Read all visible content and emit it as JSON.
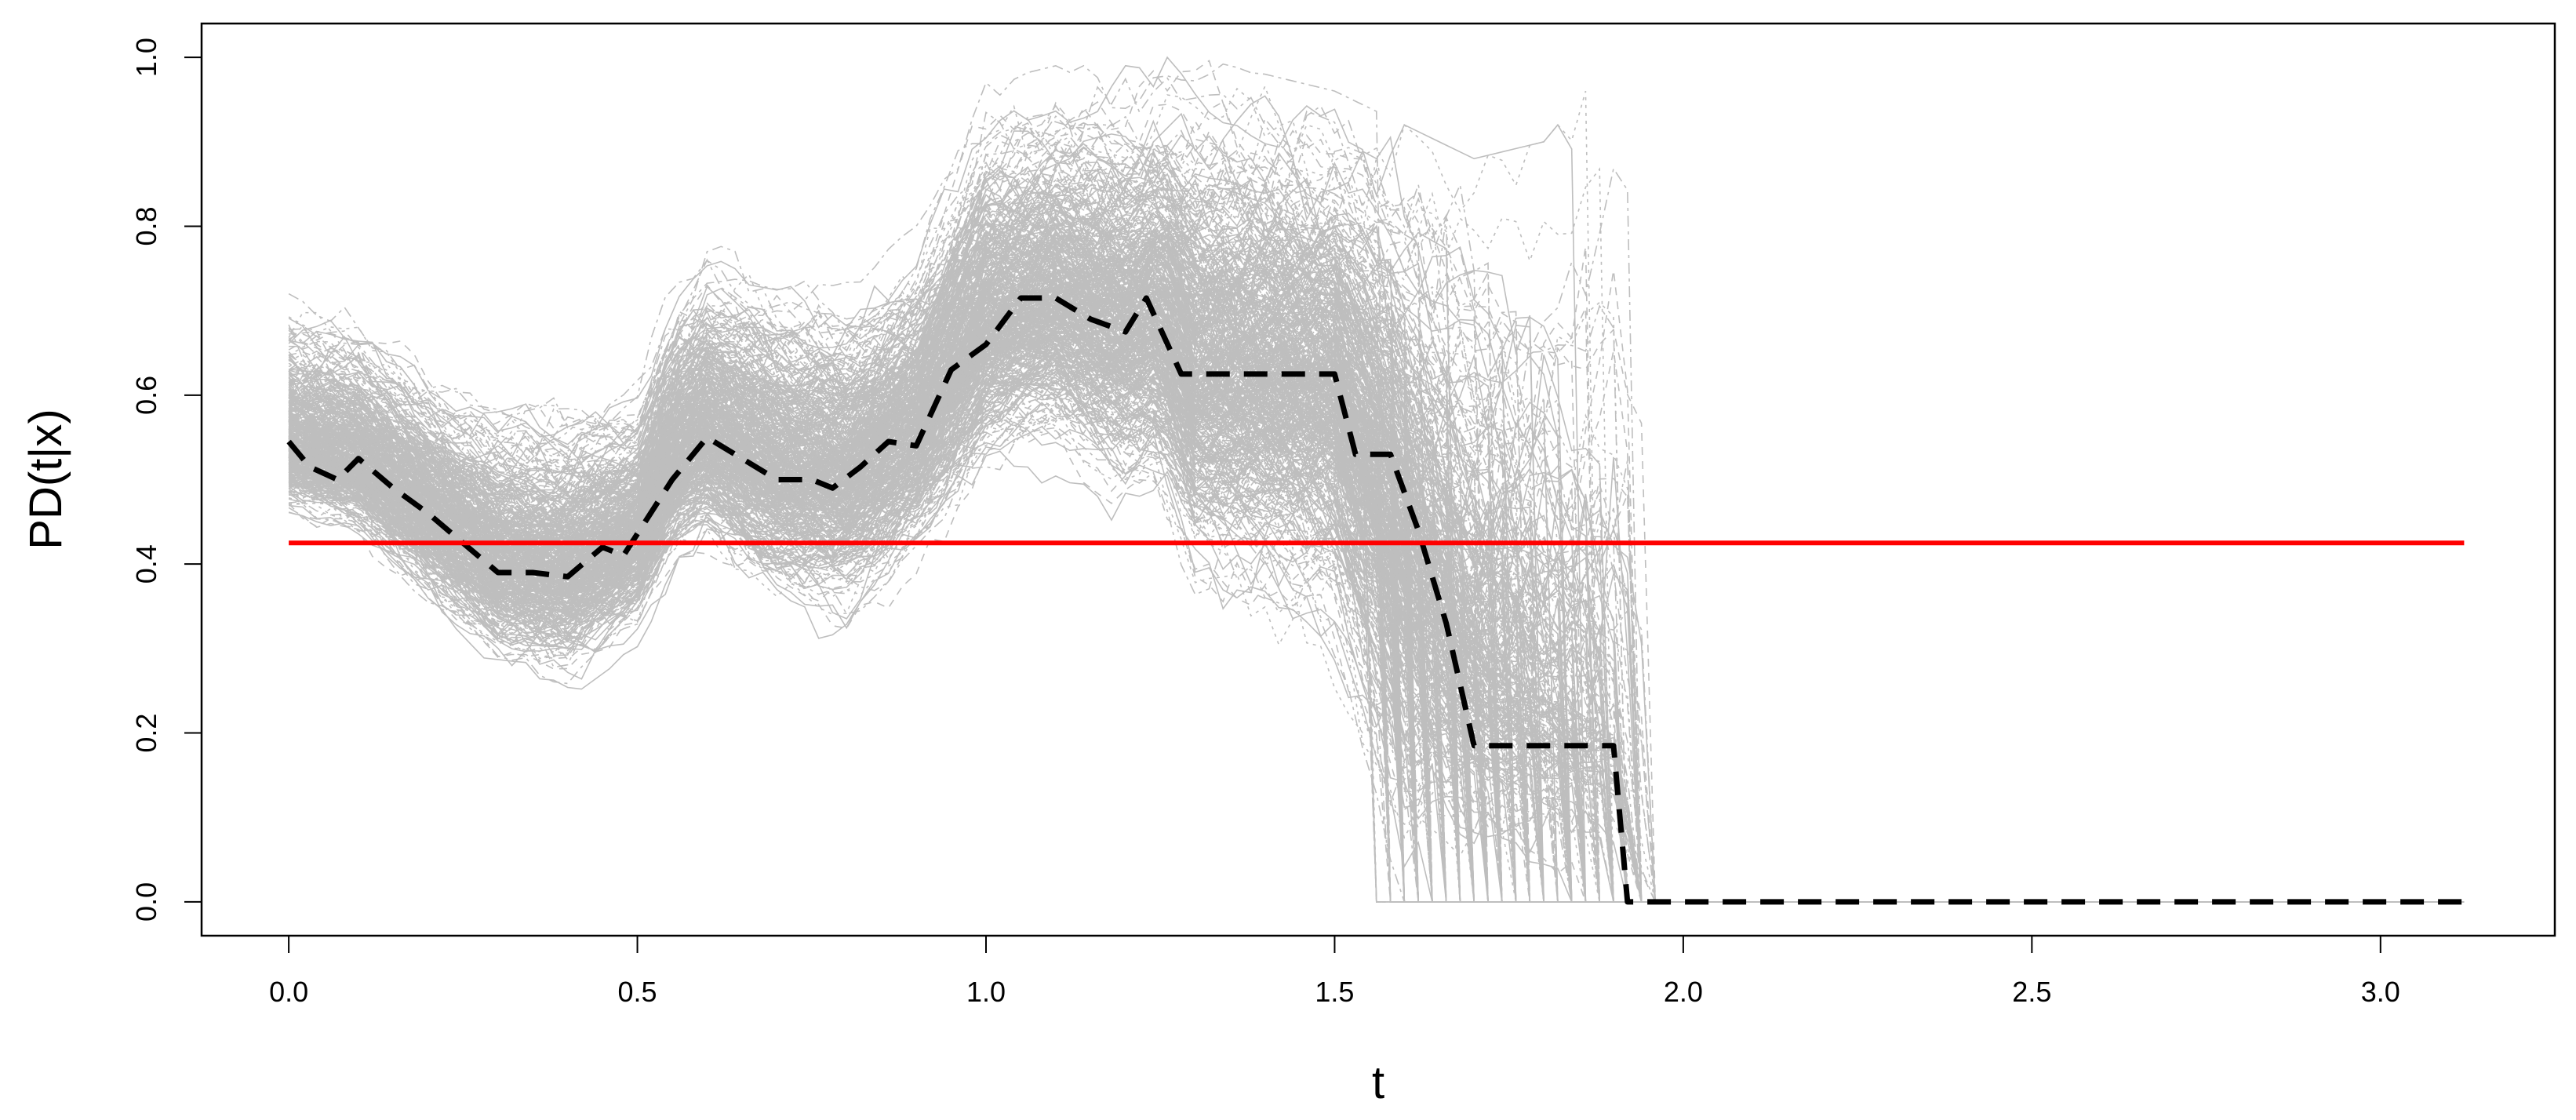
{
  "chart_data": {
    "type": "line",
    "xlabel": "t",
    "ylabel": "PD(t|x)",
    "xlim": [
      -0.125,
      3.25
    ],
    "ylim": [
      -0.04,
      1.04
    ],
    "xticks": [
      0.0,
      0.5,
      1.0,
      1.5,
      2.0,
      2.5,
      3.0
    ],
    "xtick_labels": [
      "0.0",
      "0.5",
      "1.0",
      "1.5",
      "2.0",
      "2.5",
      "3.0"
    ],
    "yticks": [
      0.0,
      0.2,
      0.4,
      0.6,
      0.8,
      1.0
    ],
    "ytick_labels": [
      "0.0",
      "0.2",
      "0.4",
      "0.6",
      "0.8",
      "1.0"
    ],
    "grid": false,
    "legend": "none",
    "colors": {
      "curves": "#bebebe",
      "mean": "#000000",
      "reference": "#ff0000"
    },
    "series": [
      {
        "style": "dashed-black-thick",
        "x": [
          0.0,
          0.03,
          0.07,
          0.1,
          0.15,
          0.2,
          0.25,
          0.3,
          0.35,
          0.4,
          0.45,
          0.48,
          0.55,
          0.6,
          0.65,
          0.7,
          0.75,
          0.78,
          0.82,
          0.86,
          0.9,
          0.95,
          1.0,
          1.05,
          1.1,
          1.15,
          1.2,
          1.23,
          1.28,
          1.35,
          1.45,
          1.5,
          1.53,
          1.58,
          1.62,
          1.66,
          1.7,
          1.75,
          1.8,
          1.85,
          1.9,
          1.92,
          1.95,
          2.0,
          2.5,
          3.0,
          3.12
        ],
        "y": [
          0.545,
          0.515,
          0.5,
          0.525,
          0.49,
          0.46,
          0.425,
          0.39,
          0.39,
          0.385,
          0.42,
          0.41,
          0.5,
          0.55,
          0.525,
          0.5,
          0.5,
          0.49,
          0.515,
          0.545,
          0.54,
          0.63,
          0.66,
          0.715,
          0.715,
          0.69,
          0.675,
          0.715,
          0.625,
          0.625,
          0.625,
          0.625,
          0.53,
          0.53,
          0.44,
          0.33,
          0.185,
          0.185,
          0.185,
          0.185,
          0.185,
          0.0,
          0.0,
          0.0,
          0.0,
          0.0,
          0.0
        ]
      },
      {
        "style": "solid-red",
        "x": [
          0.0,
          3.12
        ],
        "y": [
          0.425,
          0.425
        ]
      }
    ],
    "curve_band": {
      "style": "many-grey-curves",
      "count": 500,
      "x": [
        0.0,
        0.1,
        0.2,
        0.3,
        0.4,
        0.5,
        0.55,
        0.6,
        0.7,
        0.8,
        0.9,
        1.0,
        1.1,
        1.2,
        1.25,
        1.3,
        1.4,
        1.5,
        1.6,
        1.7,
        1.8,
        1.9,
        1.95,
        2.0,
        3.12
      ],
      "center": [
        0.54,
        0.52,
        0.46,
        0.4,
        0.39,
        0.43,
        0.52,
        0.56,
        0.51,
        0.5,
        0.56,
        0.68,
        0.71,
        0.68,
        0.7,
        0.62,
        0.62,
        0.61,
        0.45,
        0.3,
        0.25,
        0.2,
        0.0,
        0.0,
        0.0
      ],
      "lower": [
        0.44,
        0.42,
        0.34,
        0.26,
        0.24,
        0.3,
        0.38,
        0.4,
        0.33,
        0.3,
        0.38,
        0.48,
        0.5,
        0.44,
        0.44,
        0.34,
        0.3,
        0.25,
        0.0,
        0.0,
        0.0,
        0.0,
        0.0,
        0.0,
        0.0
      ],
      "upper": [
        0.72,
        0.7,
        0.64,
        0.6,
        0.6,
        0.62,
        0.74,
        0.78,
        0.76,
        0.74,
        0.8,
        0.97,
        0.99,
        0.99,
        1.0,
        1.0,
        0.98,
        0.96,
        0.92,
        0.88,
        0.9,
        1.0,
        1.0,
        0.0,
        0.0
      ],
      "cutoff_min": 1.55,
      "cutoff_max": 1.95
    }
  }
}
